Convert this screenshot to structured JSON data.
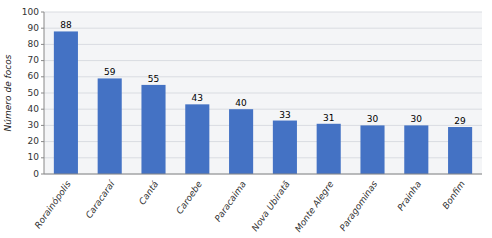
{
  "chart_data": {
    "type": "bar",
    "categories": [
      "Rorainópolis",
      "Caracaraí",
      "Cantá",
      "Caroebe",
      "Paracaima",
      "Nova Ubiratã",
      "Monte Alegre",
      "Paragominas",
      "Prainha",
      "Bonfim"
    ],
    "values": [
      88,
      59,
      55,
      43,
      40,
      33,
      31,
      30,
      30,
      29
    ],
    "color": "#4472C4",
    "ylabel": "Número de focos",
    "ylim": [
      0,
      100
    ],
    "yticks": [
      0,
      10,
      20,
      30,
      40,
      50,
      60,
      70,
      80,
      90,
      100
    ],
    "grid": true,
    "data_labels": true
  }
}
